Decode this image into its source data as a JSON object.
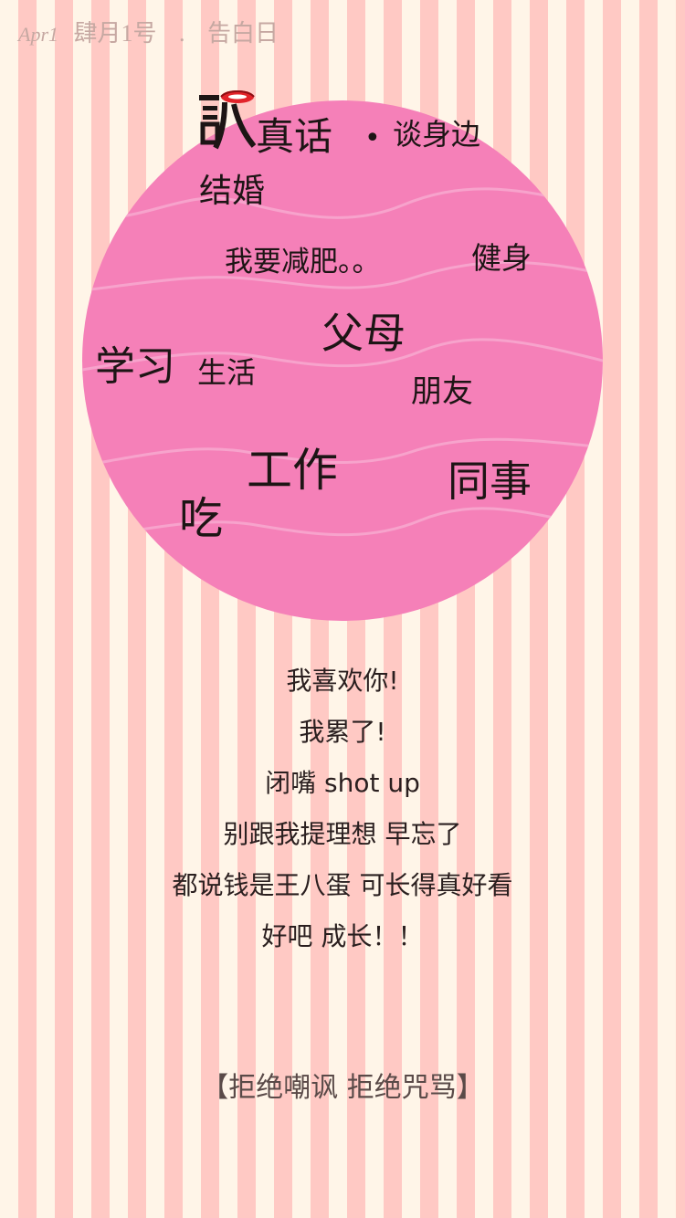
{
  "header": {
    "date_en": "Apr1",
    "date_cn": "肆月1号",
    "separator": ".",
    "occasion": "告白日"
  },
  "title": {
    "main": "真话",
    "dot": "•",
    "sub": "谈身边"
  },
  "colors": {
    "stripe_light": "#fff5e8",
    "stripe_pink": "#ffc9c4",
    "circle": "#f580b8",
    "wave": "#f7a3cc",
    "mark_red": "#e2232a"
  },
  "words": {
    "marriage": "结婚",
    "diet": "我要减肥。。",
    "fitness": "健身",
    "parents": "父母",
    "study": "学习",
    "life": "生活",
    "friends": "朋友",
    "work": "工作",
    "colleagues": "同事",
    "eat": "吃"
  },
  "lines": [
    "我喜欢你!",
    "我累了!",
    "闭嘴 shot up",
    "别跟我提理想 早忘了",
    "都说钱是王八蛋 可长得真好看",
    "好吧  成长！！"
  ],
  "footer": {
    "note": "【拒绝嘲讽 拒绝咒骂】"
  }
}
